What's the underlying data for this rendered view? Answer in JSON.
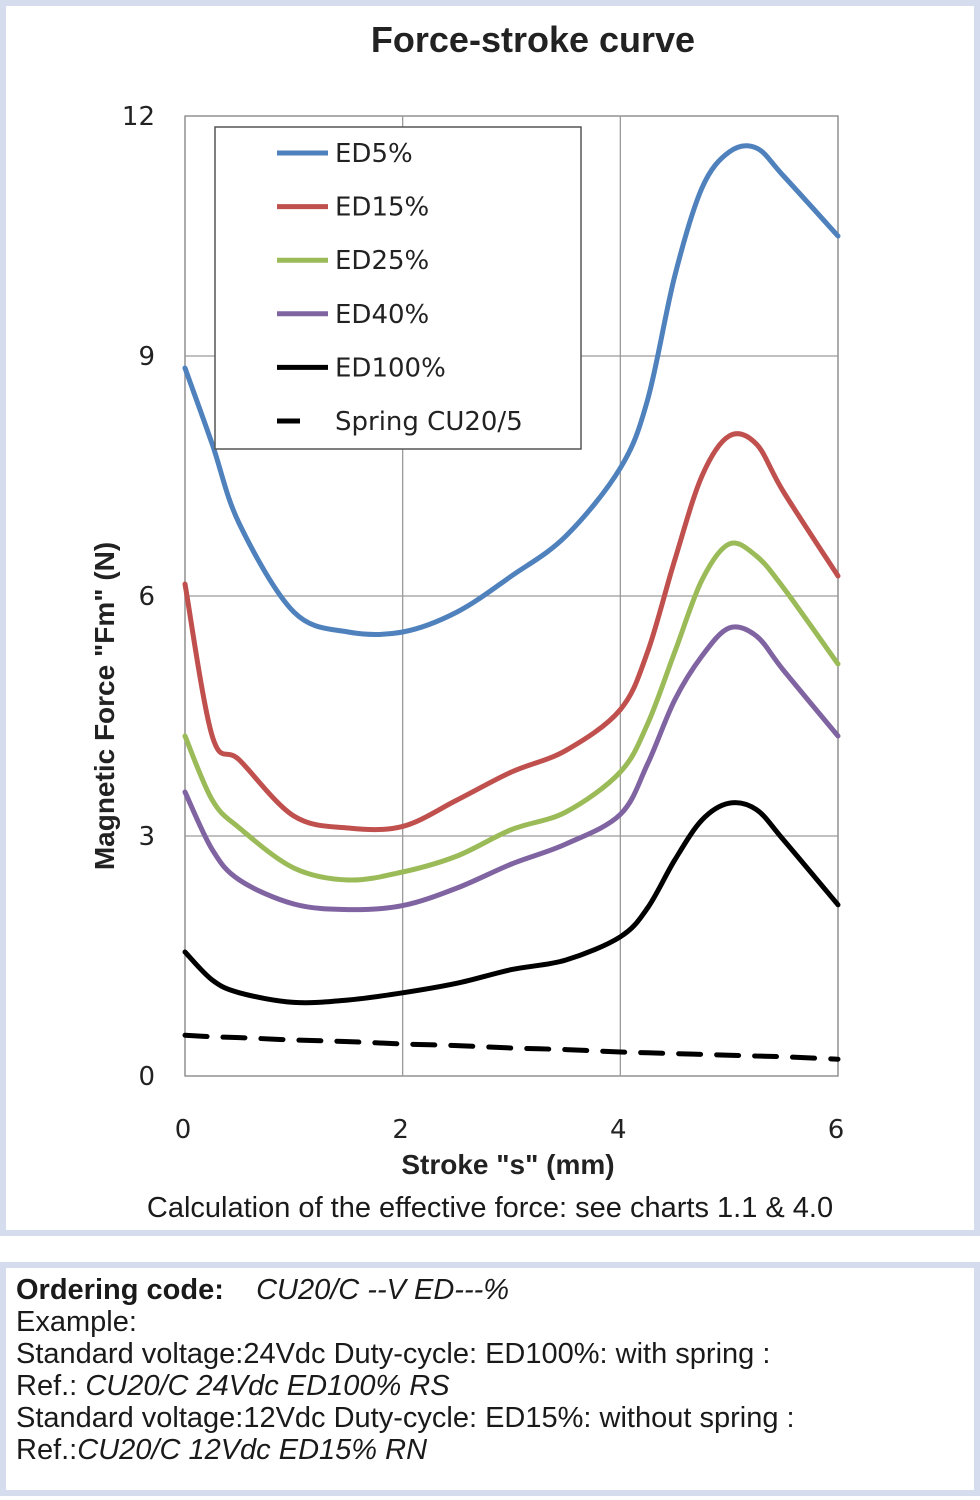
{
  "chart_data": {
    "type": "line",
    "title": "Force-stroke curve",
    "xlabel": "Stroke \"s\" (mm)",
    "ylabel": "Magnetic Force \"Fm\" (N)",
    "xlim": [
      0,
      6
    ],
    "ylim": [
      0,
      12
    ],
    "xticks": [
      0,
      2,
      4,
      6
    ],
    "yticks": [
      0,
      3,
      6,
      9,
      12
    ],
    "grid": true,
    "legend_placement": "top-left",
    "x": [
      0,
      0.25,
      0.5,
      1,
      1.5,
      2,
      2.5,
      3,
      3.5,
      4,
      4.25,
      4.5,
      4.75,
      5,
      5.25,
      5.5,
      6
    ],
    "series": [
      {
        "name": "ED5%",
        "color": "#4f81bd",
        "style": "solid",
        "values": [
          8.85,
          7.9,
          6.9,
          5.8,
          5.55,
          5.55,
          5.8,
          6.25,
          6.75,
          7.6,
          8.45,
          10.0,
          11.1,
          11.55,
          11.6,
          11.25,
          10.5
        ]
      },
      {
        "name": "ED15%",
        "color": "#c0504d",
        "style": "solid",
        "values": [
          6.15,
          4.25,
          3.95,
          3.25,
          3.1,
          3.12,
          3.45,
          3.8,
          4.07,
          4.58,
          5.3,
          6.45,
          7.5,
          8.0,
          7.9,
          7.3,
          6.25
        ]
      },
      {
        "name": "ED25%",
        "color": "#9bbb59",
        "style": "solid",
        "values": [
          4.25,
          3.45,
          3.1,
          2.6,
          2.45,
          2.55,
          2.75,
          3.08,
          3.3,
          3.8,
          4.4,
          5.3,
          6.2,
          6.65,
          6.5,
          6.1,
          5.15
        ]
      },
      {
        "name": "ED40%",
        "color": "#8064a2",
        "style": "solid",
        "values": [
          3.55,
          2.83,
          2.45,
          2.15,
          2.08,
          2.13,
          2.35,
          2.65,
          2.9,
          3.27,
          3.9,
          4.7,
          5.25,
          5.6,
          5.5,
          5.07,
          4.25
        ]
      },
      {
        "name": "ED100%",
        "color": "#000000",
        "style": "solid",
        "values": [
          1.55,
          1.2,
          1.04,
          0.92,
          0.95,
          1.04,
          1.16,
          1.33,
          1.45,
          1.74,
          2.1,
          2.7,
          3.2,
          3.41,
          3.33,
          2.95,
          2.14
        ]
      },
      {
        "name": "Spring CU20/5",
        "color": "#000000",
        "style": "dashed",
        "values": [
          0.51,
          0.49,
          0.48,
          0.45,
          0.43,
          0.4,
          0.38,
          0.35,
          0.33,
          0.3,
          0.29,
          0.28,
          0.27,
          0.26,
          0.25,
          0.24,
          0.21
        ]
      }
    ]
  },
  "note": "Calculation of the effective force: see charts 1.1 & 4.0",
  "ordering": {
    "label": "Ordering code:",
    "code": "CU20/C --V ED---%",
    "example_label": "Example:",
    "line1": "Standard voltage:24Vdc Duty-cycle: ED100%: with spring :",
    "ref1_label": "Ref.: ",
    "ref1": "CU20/C 24Vdc ED100% RS",
    "line2": "Standard voltage:12Vdc Duty-cycle: ED15%: without spring :",
    "ref2_label": "Ref.:",
    "ref2": "CU20/C 12Vdc ED15% RN"
  }
}
